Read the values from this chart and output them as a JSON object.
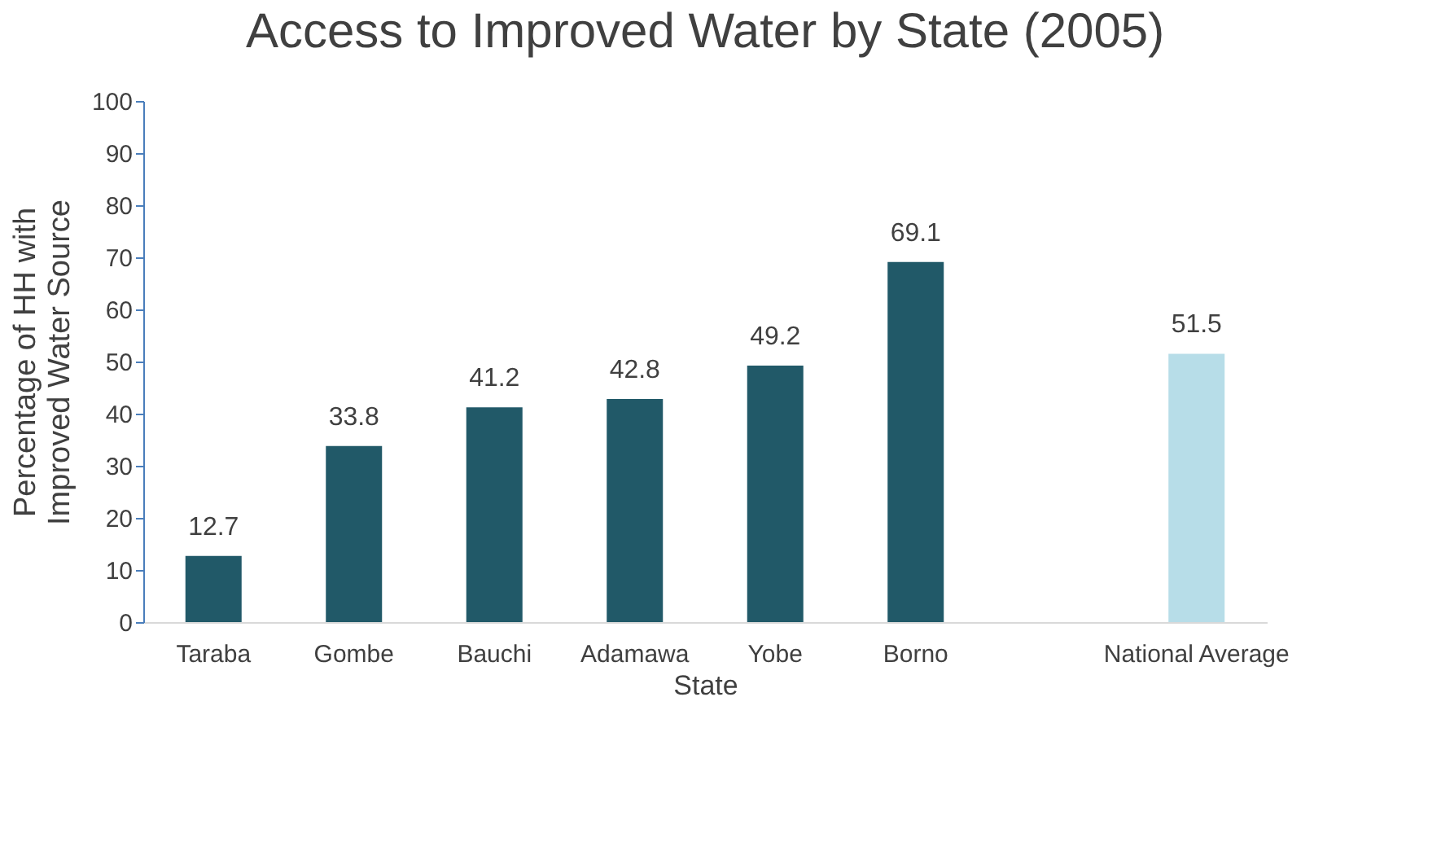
{
  "chart_data": {
    "type": "bar",
    "title": "Access to Improved Water by State (2005)",
    "xlabel": "State",
    "ylabel": "Percentage of HH with Improved Water Source",
    "categories": [
      "Taraba",
      "Gombe",
      "Bauchi",
      "Adamawa",
      "Yobe",
      "Borno",
      null,
      "National Average"
    ],
    "values": [
      12.7,
      33.8,
      41.2,
      42.8,
      49.2,
      69.1,
      null,
      51.5
    ],
    "colors": [
      "#215968",
      "#215968",
      "#215968",
      "#215968",
      "#215968",
      "#215968",
      "#215968",
      "#b7dde8"
    ],
    "ylim": [
      0,
      100
    ],
    "yticks": [
      0,
      10,
      20,
      30,
      40,
      50,
      60,
      70,
      80,
      90,
      100
    ],
    "grid": false,
    "data_labels": true
  }
}
